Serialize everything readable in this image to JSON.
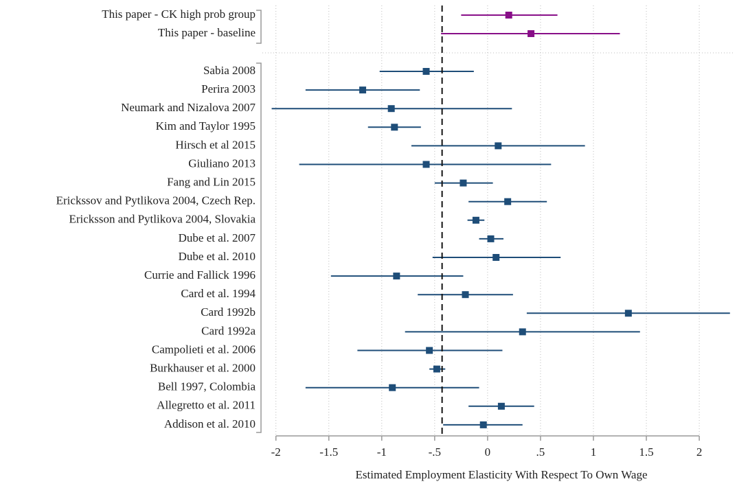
{
  "chart_data": {
    "type": "forest",
    "x_label": "Estimated Employment Elasticity With Respect To Own Wage",
    "xlim": [
      -2.05,
      2.35
    ],
    "xticks": [
      -2,
      -1.5,
      -1,
      {
        "value": -0.5,
        "label": "-.5"
      },
      0,
      {
        "value": 0.5,
        "label": ".5"
      },
      1,
      1.5,
      2
    ],
    "grid": true,
    "ref_line": -0.43,
    "groups": [
      {
        "color": "#880e88",
        "categories": [
          "This paper - CK high prob group",
          "This paper - baseline"
        ],
        "values": [
          0.2,
          0.41
        ],
        "lower": [
          -0.25,
          -0.44
        ],
        "upper": [
          0.66,
          1.25
        ]
      },
      {
        "color": "#1e4d78",
        "categories": [
          "Sabia 2008",
          "Perira 2003",
          "Neumark and Nizalova 2007",
          "Kim and Taylor 1995",
          "Hirsch et al 2015",
          "Giuliano 2013",
          "Fang and Lin 2015",
          "Erickssov and Pytlikova 2004, Czech Rep.",
          "Ericksson and Pytlikova 2004, Slovakia",
          "Dube et al. 2007",
          "Dube et al. 2010",
          "Currie and Fallick 1996",
          "Card et al. 1994",
          "Card 1992b",
          "Card 1992a",
          "Campolieti et al. 2006",
          "Burkhauser et al. 2000",
          "Bell 1997, Colombia",
          "Allegretto et al. 2011",
          "Addison et al. 2010"
        ],
        "values": [
          -0.58,
          -1.18,
          -0.91,
          -0.88,
          0.1,
          -0.58,
          -0.23,
          0.19,
          -0.11,
          0.03,
          0.08,
          -0.86,
          -0.21,
          1.33,
          0.33,
          -0.55,
          -0.48,
          -0.9,
          0.13,
          -0.04
        ],
        "lower": [
          -1.02,
          -1.72,
          -2.04,
          -1.13,
          -0.72,
          -1.78,
          -0.5,
          -0.18,
          -0.19,
          -0.08,
          -0.52,
          -1.48,
          -0.66,
          0.37,
          -0.78,
          -1.23,
          -0.55,
          -1.72,
          -0.18,
          -0.42
        ],
        "upper": [
          -0.13,
          -0.64,
          0.23,
          -0.63,
          0.92,
          0.6,
          0.05,
          0.56,
          -0.03,
          0.15,
          0.69,
          -0.23,
          0.24,
          2.29,
          1.44,
          0.14,
          -0.4,
          -0.08,
          0.44,
          0.33
        ]
      }
    ]
  }
}
